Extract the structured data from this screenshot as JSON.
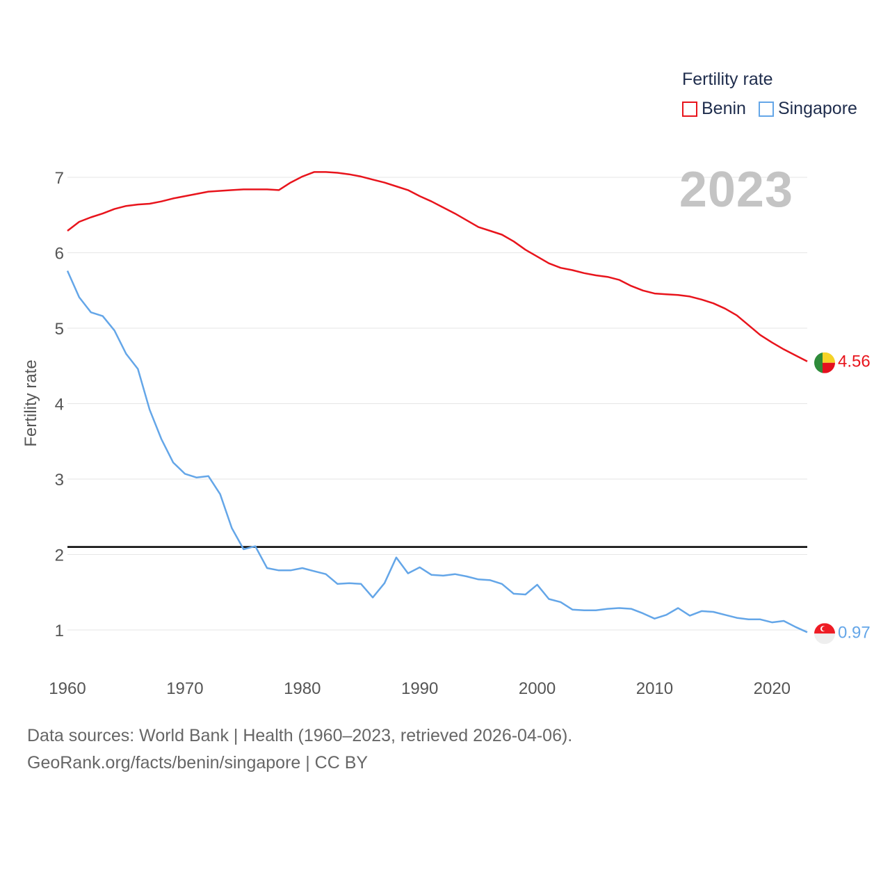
{
  "chart_data": {
    "type": "line",
    "title": "",
    "year_label": "2023",
    "ylabel": "Fertility rate",
    "xlabel": "",
    "xlim": [
      1960,
      2023
    ],
    "ylim": [
      0.4,
      7.4
    ],
    "x_ticks": [
      "1960",
      "1970",
      "1980",
      "1990",
      "2000",
      "2010",
      "2020"
    ],
    "y_ticks": [
      "1",
      "2",
      "3",
      "4",
      "5",
      "6",
      "7"
    ],
    "legend_title": "Fertility rate",
    "reference_line": 2.1,
    "x": [
      1960,
      1961,
      1962,
      1963,
      1964,
      1965,
      1966,
      1967,
      1968,
      1969,
      1970,
      1971,
      1972,
      1973,
      1974,
      1975,
      1976,
      1977,
      1978,
      1979,
      1980,
      1981,
      1982,
      1983,
      1984,
      1985,
      1986,
      1987,
      1988,
      1989,
      1990,
      1991,
      1992,
      1993,
      1994,
      1995,
      1996,
      1997,
      1998,
      1999,
      2000,
      2001,
      2002,
      2003,
      2004,
      2005,
      2006,
      2007,
      2008,
      2009,
      2010,
      2011,
      2012,
      2013,
      2014,
      2015,
      2016,
      2017,
      2018,
      2019,
      2020,
      2021,
      2022,
      2023
    ],
    "series": [
      {
        "name": "Benin",
        "color": "#e8141c",
        "end_label": "4.56",
        "flag": "benin",
        "values": [
          6.29,
          6.41,
          6.47,
          6.52,
          6.58,
          6.62,
          6.64,
          6.65,
          6.68,
          6.72,
          6.75,
          6.78,
          6.81,
          6.82,
          6.83,
          6.84,
          6.84,
          6.84,
          6.83,
          6.93,
          7.01,
          7.07,
          7.07,
          7.06,
          7.04,
          7.01,
          6.97,
          6.93,
          6.88,
          6.83,
          6.75,
          6.68,
          6.6,
          6.52,
          6.43,
          6.34,
          6.29,
          6.24,
          6.15,
          6.04,
          5.95,
          5.86,
          5.8,
          5.77,
          5.73,
          5.7,
          5.68,
          5.64,
          5.56,
          5.5,
          5.46,
          5.45,
          5.44,
          5.42,
          5.38,
          5.33,
          5.26,
          5.17,
          5.04,
          4.91,
          4.81,
          4.72,
          4.64,
          4.56
        ]
      },
      {
        "name": "Singapore",
        "color": "#64a6e8",
        "end_label": "0.97",
        "flag": "singapore",
        "values": [
          5.76,
          5.41,
          5.21,
          5.16,
          4.97,
          4.66,
          4.46,
          3.92,
          3.53,
          3.22,
          3.07,
          3.02,
          3.04,
          2.8,
          2.35,
          2.07,
          2.11,
          1.82,
          1.79,
          1.79,
          1.82,
          1.78,
          1.74,
          1.61,
          1.62,
          1.61,
          1.43,
          1.62,
          1.96,
          1.75,
          1.83,
          1.73,
          1.72,
          1.74,
          1.71,
          1.67,
          1.66,
          1.61,
          1.48,
          1.47,
          1.6,
          1.41,
          1.37,
          1.27,
          1.26,
          1.26,
          1.28,
          1.29,
          1.28,
          1.22,
          1.15,
          1.2,
          1.29,
          1.19,
          1.25,
          1.24,
          1.2,
          1.16,
          1.14,
          1.14,
          1.1,
          1.12,
          1.04,
          0.97
        ]
      }
    ]
  },
  "footer": {
    "line1": "Data sources: World Bank | Health (1960–2023, retrieved 2026-04-06).",
    "line2": "GeoRank.org/facts/benin/singapore | CC BY"
  }
}
